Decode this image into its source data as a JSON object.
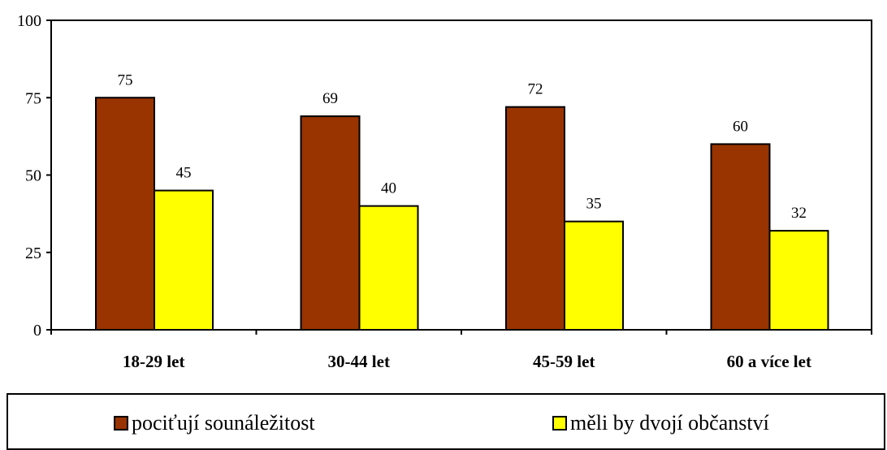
{
  "chart_data": {
    "type": "bar",
    "categories": [
      "18-29 let",
      "30-44 let",
      "45-59 let",
      "60 a více let"
    ],
    "series": [
      {
        "name": "pociťují sounáležitost",
        "values": [
          75,
          69,
          72,
          60
        ],
        "color": "#993300"
      },
      {
        "name": "měli by dvojí občanství",
        "values": [
          45,
          40,
          35,
          32
        ],
        "color": "#FFFF00"
      }
    ],
    "ylim": [
      0,
      100
    ],
    "yticks": [
      0,
      25,
      50,
      75,
      100
    ],
    "title": "",
    "xlabel": "",
    "ylabel": "",
    "grid": false,
    "legend_position": "bottom"
  }
}
